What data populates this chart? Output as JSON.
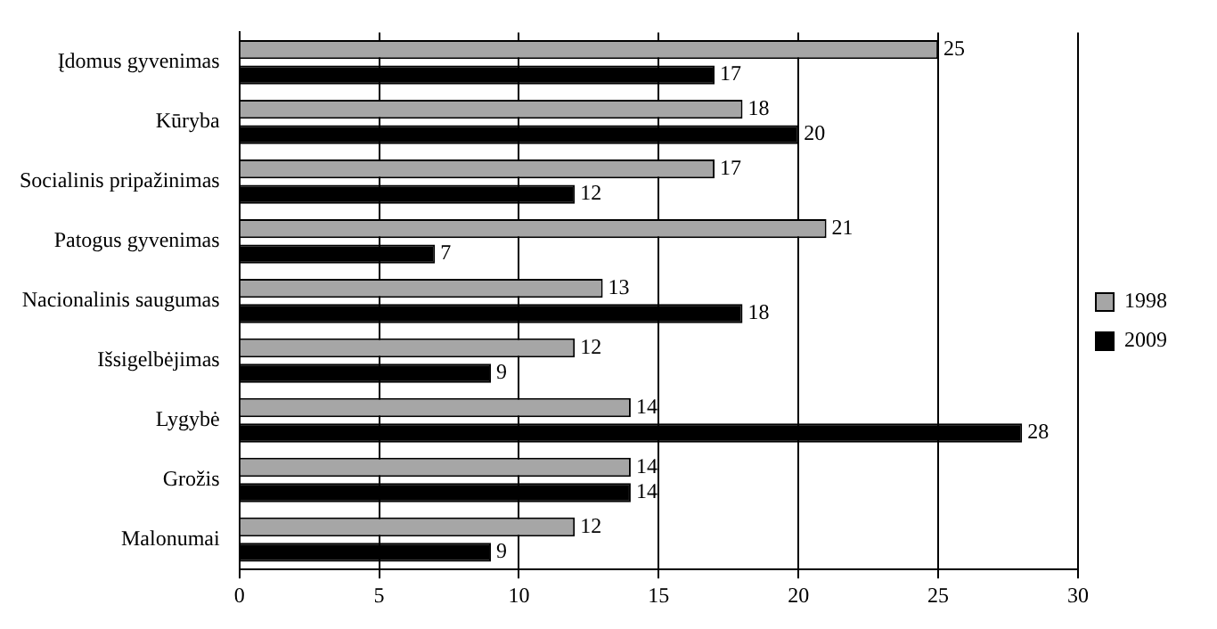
{
  "chart_data": {
    "type": "bar",
    "orientation": "horizontal",
    "categories": [
      "Įdomus gyvenimas",
      "Kūryba",
      "Socialinis pripažinimas",
      "Patogus gyvenimas",
      "Nacionalinis saugumas",
      "Išsigelbėjimas",
      "Lygybė",
      "Grožis",
      "Malonumai"
    ],
    "series": [
      {
        "name": "1998",
        "color": "#a6a6a6",
        "values": [
          25,
          18,
          17,
          21,
          13,
          12,
          14,
          14,
          12
        ]
      },
      {
        "name": "2009",
        "color": "#000000",
        "values": [
          17,
          20,
          12,
          7,
          18,
          9,
          28,
          14,
          9
        ]
      }
    ],
    "xlim": [
      0,
      30
    ],
    "xticks": [
      0,
      5,
      10,
      15,
      20,
      25,
      30
    ],
    "grid": "x",
    "legend": "right",
    "data_labels": true
  }
}
